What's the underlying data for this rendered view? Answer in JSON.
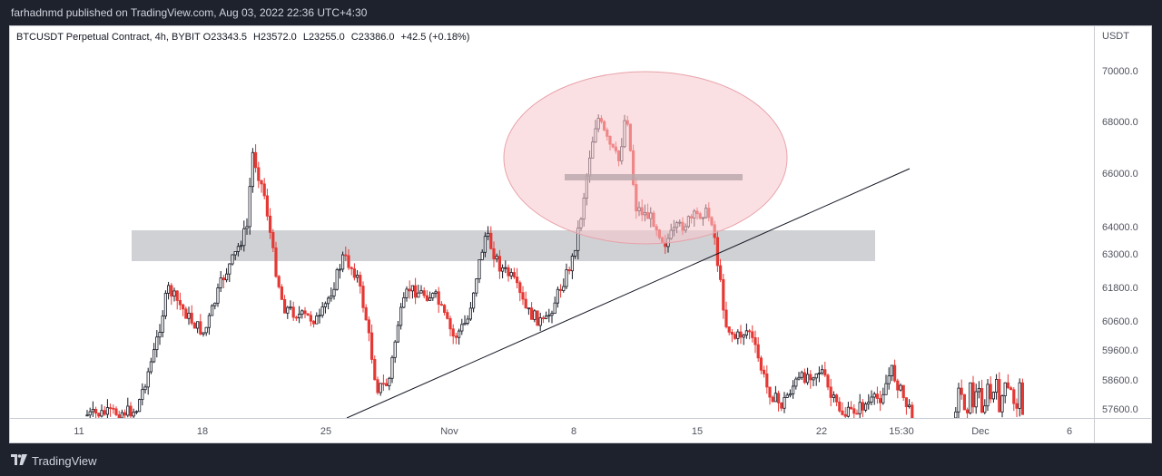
{
  "header": {
    "published_text": "farhadnmd published on TradingView.com, Aug 03, 2022 22:36 UTC+4:30"
  },
  "legend": {
    "symbol": "BTCUSDT Perpetual Contract, 4h, BYBIT",
    "open_key": "O",
    "open": "23343.5",
    "high_key": "H",
    "high": "23572.0",
    "low_key": "L",
    "low": "23255.0",
    "close_key": "C",
    "close": "23386.0",
    "change": "+42.5 (+0.18%)"
  },
  "price_axis": {
    "currency": "USDT",
    "labels": [
      "70000.0",
      "68000.0",
      "66000.0",
      "64000.0",
      "63000.0",
      "61800.0",
      "60600.0",
      "59600.0",
      "58600.0",
      "57600.0"
    ]
  },
  "time_axis": {
    "labels": [
      "11",
      "18",
      "25",
      "Nov",
      "8",
      "15",
      "22",
      "15:30",
      "Dec",
      "6"
    ]
  },
  "footer": {
    "brand": "TradingView"
  },
  "colors": {
    "up_candle": "#131722",
    "down_candle": "#e53935",
    "zone": "#c8c9cd",
    "ellipse_fill": "#f7c6cc",
    "ellipse_stroke": "#e7a3ab",
    "trendline": "#131722"
  }
}
